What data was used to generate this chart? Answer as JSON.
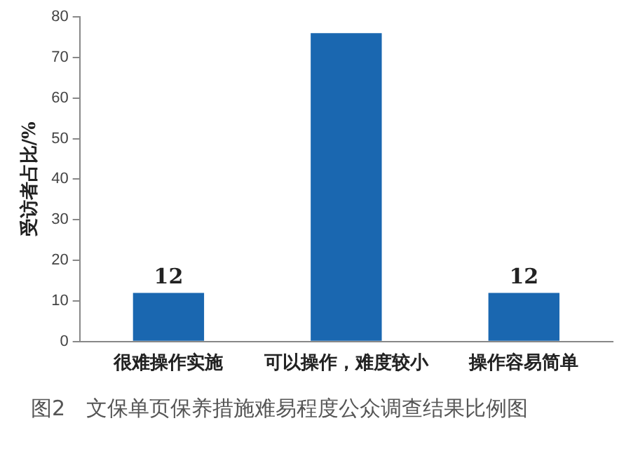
{
  "chart_data": {
    "type": "bar",
    "categories": [
      "很难操作实施",
      "可以操作，难度较小",
      "操作容易简单"
    ],
    "values": [
      12,
      76,
      12
    ],
    "value_labels": [
      "12",
      null,
      "12"
    ],
    "color": "#1a67b0",
    "ylabel": "受访者占比/%",
    "ylim": [
      0,
      80
    ],
    "yticks": [
      0,
      10,
      20,
      30,
      40,
      50,
      60,
      70,
      80
    ],
    "grid": false,
    "legend": false,
    "annotations": [
      "图2　文保单页保养措施难易程度公众调查结果比例图"
    ]
  }
}
